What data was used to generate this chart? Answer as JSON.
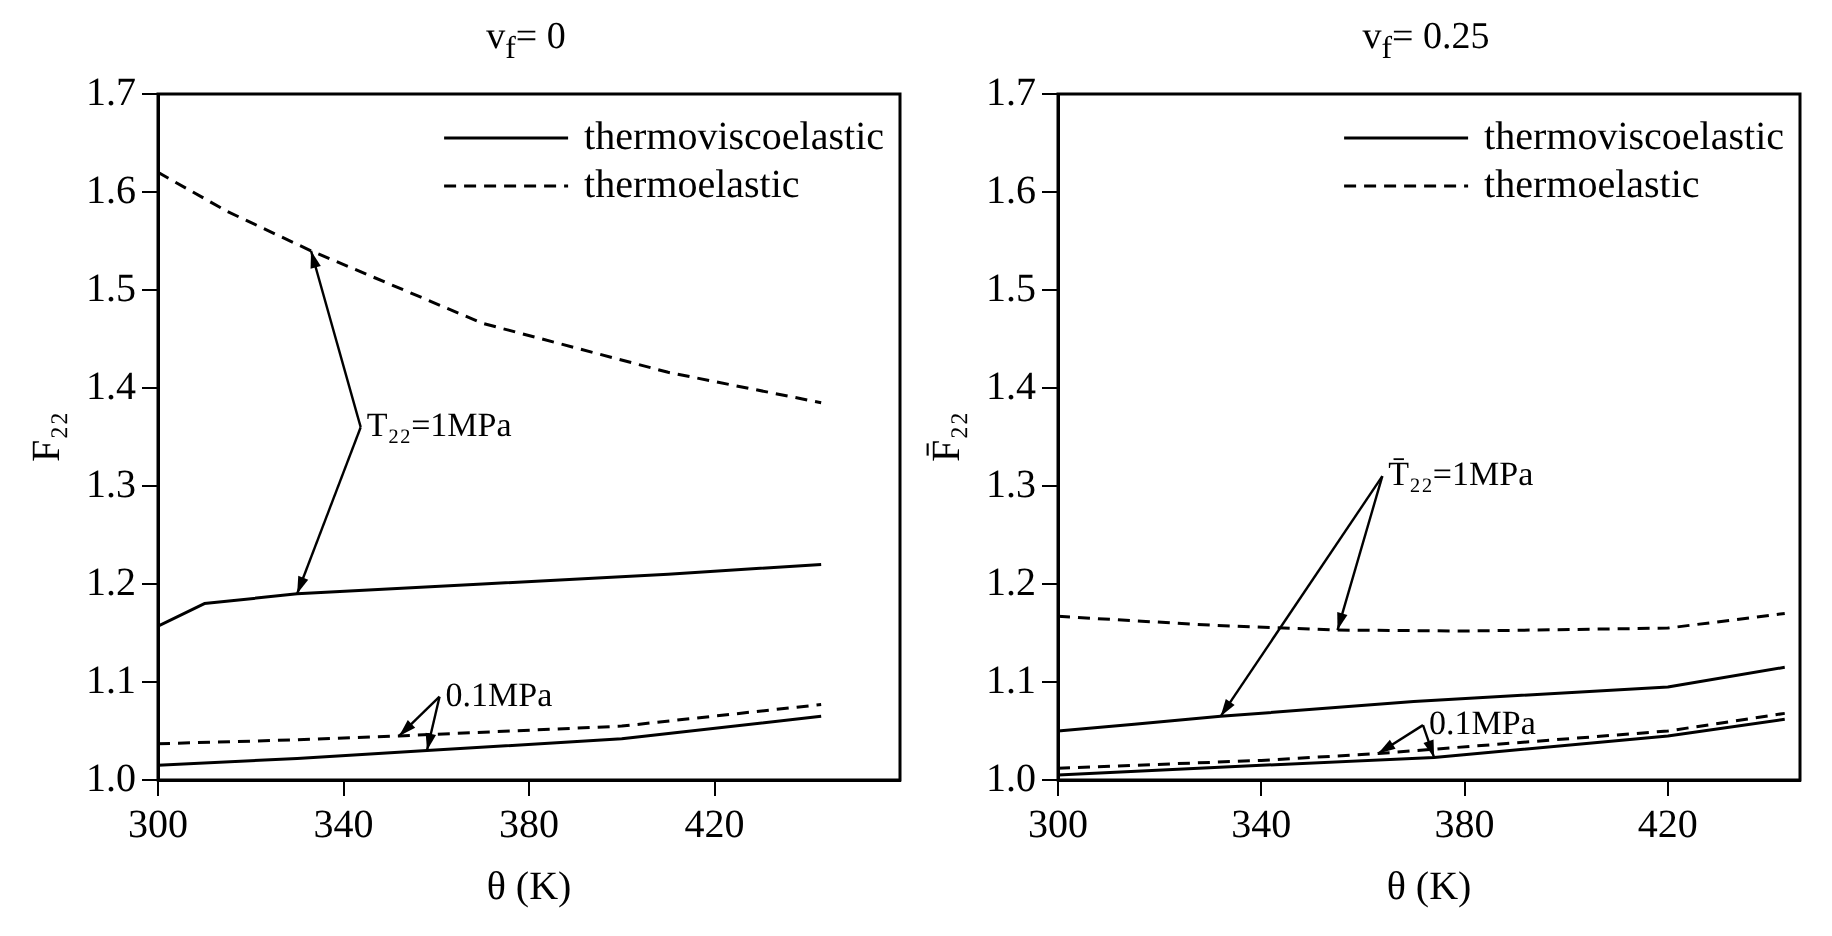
{
  "chart_data": [
    {
      "type": "line",
      "title": "v$_{f}$= 0",
      "xlabel": "θ (K)",
      "ylabel": "F₂₂",
      "xlim": [
        300,
        460
      ],
      "xticks": [
        300,
        340,
        380,
        420
      ],
      "ylim": [
        1.0,
        1.7
      ],
      "yticks": [
        {
          "value": 1,
          "label": "1.0"
        },
        1.1,
        1.2,
        1.3,
        1.4,
        1.5,
        1.6,
        1.7
      ],
      "grid": false,
      "legend": "top right",
      "marker": "none",
      "annotations": [
        {
          "text": "T₂₂=1MPa",
          "x": 330,
          "y": 1.19
        },
        {
          "text": "0.1MPa",
          "x": 358,
          "y": 1.03
        }
      ],
      "series": [
        {
          "name": "thermoviscoelastic",
          "color": "#000000",
          "line_style": "solid",
          "x": [
            300,
            310,
            330,
            370,
            410,
            443
          ],
          "values": [
            1.157,
            1.18,
            1.19,
            1.2,
            1.21,
            1.22
          ]
        },
        {
          "name": "thermoelastic",
          "color": "#000000",
          "line_style": "dashed",
          "x": [
            300,
            315,
            333,
            370,
            410,
            443
          ],
          "values": [
            1.62,
            1.58,
            1.54,
            1.466,
            1.416,
            1.385
          ]
        },
        {
          "color": "#000000",
          "line_style": "solid",
          "x": [
            300,
            330,
            358,
            400,
            443
          ],
          "values": [
            1.015,
            1.022,
            1.03,
            1.042,
            1.065
          ]
        },
        {
          "color": "#000000",
          "line_style": "dashed",
          "x": [
            300,
            330,
            352,
            400,
            443
          ],
          "values": [
            1.037,
            1.041,
            1.045,
            1.055,
            1.077
          ]
        }
      ]
    },
    {
      "type": "line",
      "title": "v$_{f}$= 0.25",
      "xlabel": "θ (K)",
      "ylabel": "F̄₂₂",
      "xlim": [
        300,
        446
      ],
      "xticks": [
        300,
        340,
        380,
        420
      ],
      "ylim": [
        1.0,
        1.7
      ],
      "yticks": [
        {
          "value": 1,
          "label": "1.0"
        },
        1.1,
        1.2,
        1.3,
        1.4,
        1.5,
        1.6,
        1.7
      ],
      "grid": false,
      "legend": "top right",
      "marker": "none",
      "annotations": [
        {
          "text": "T̄₂₂=1MPa",
          "x": 332,
          "y": 1.065
        },
        {
          "text": "0.1MPa",
          "x": 374,
          "y": 1.023
        }
      ],
      "series": [
        {
          "name": "thermoviscoelastic",
          "color": "#000000",
          "line_style": "solid",
          "x": [
            300,
            315,
            332,
            370,
            420,
            443
          ],
          "values": [
            1.05,
            1.057,
            1.065,
            1.08,
            1.095,
            1.115
          ]
        },
        {
          "name": "thermoelastic",
          "color": "#000000",
          "line_style": "dashed",
          "x": [
            300,
            330,
            355,
            380,
            420,
            443
          ],
          "values": [
            1.167,
            1.158,
            1.153,
            1.152,
            1.155,
            1.17
          ]
        },
        {
          "color": "#000000",
          "line_style": "solid",
          "x": [
            300,
            340,
            374,
            420,
            443
          ],
          "values": [
            1.005,
            1.015,
            1.023,
            1.045,
            1.062
          ]
        },
        {
          "color": "#000000",
          "line_style": "dashed",
          "x": [
            300,
            340,
            363,
            420,
            443
          ],
          "values": [
            1.012,
            1.02,
            1.027,
            1.05,
            1.068
          ]
        }
      ]
    }
  ]
}
